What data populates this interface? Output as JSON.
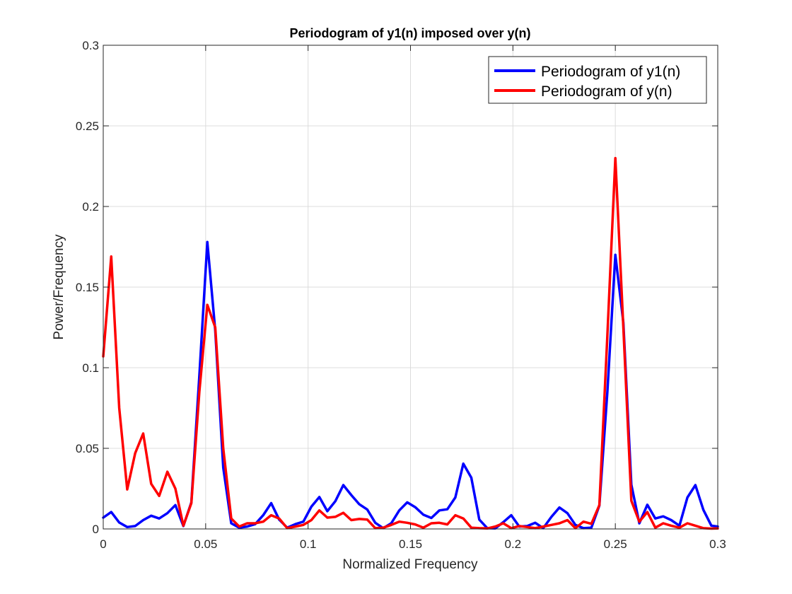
{
  "chart_data": {
    "type": "line",
    "title": "Periodogram of y1(n) imposed over y(n)",
    "xlabel": "Normalized Frequency",
    "ylabel": "Power/Frequency",
    "xlim": [
      0,
      0.3
    ],
    "ylim": [
      0,
      0.3
    ],
    "xticks": [
      "0",
      "0.05",
      "0.1",
      "0.15",
      "0.2",
      "0.25",
      "0.3"
    ],
    "yticks": [
      "0",
      "0.05",
      "0.1",
      "0.15",
      "0.2",
      "0.25",
      "0.3"
    ],
    "xtick_values": [
      0,
      0.05,
      0.1,
      0.15,
      0.2,
      0.25,
      0.3
    ],
    "ytick_values": [
      0,
      0.05,
      0.1,
      0.15,
      0.2,
      0.25,
      0.3
    ],
    "grid": true,
    "legend_position": "top-right",
    "x": [
      0,
      0.0039,
      0.0078,
      0.0117,
      0.0156,
      0.0195,
      0.0234,
      0.0273,
      0.0313,
      0.0352,
      0.0391,
      0.043,
      0.0469,
      0.0508,
      0.0547,
      0.0586,
      0.0625,
      0.0664,
      0.0703,
      0.0742,
      0.0781,
      0.082,
      0.0859,
      0.0898,
      0.0938,
      0.0977,
      0.1016,
      0.1055,
      0.1094,
      0.1133,
      0.1172,
      0.1211,
      0.125,
      0.1289,
      0.1328,
      0.1367,
      0.1406,
      0.1445,
      0.1484,
      0.1523,
      0.1563,
      0.1602,
      0.1641,
      0.168,
      0.1719,
      0.1758,
      0.1797,
      0.1836,
      0.1875,
      0.1914,
      0.1953,
      0.1992,
      0.2031,
      0.207,
      0.2109,
      0.2148,
      0.2188,
      0.2227,
      0.2266,
      0.2305,
      0.2344,
      0.2383,
      0.2422,
      0.2461,
      0.25,
      0.2539,
      0.2578,
      0.2617,
      0.2656,
      0.2695,
      0.2734,
      0.2773,
      0.2813,
      0.2852,
      0.2891,
      0.293,
      0.2969,
      0.3
    ],
    "series": [
      {
        "name": "Periodogram of y1(n)",
        "color": "#0000ff",
        "values": [
          0.007,
          0.0105,
          0.004,
          0.0012,
          0.0018,
          0.0055,
          0.0082,
          0.0065,
          0.0098,
          0.0148,
          0.0018,
          0.0165,
          0.095,
          0.178,
          0.123,
          0.038,
          0.0035,
          0.0008,
          0.0015,
          0.003,
          0.0085,
          0.016,
          0.0058,
          0.0008,
          0.003,
          0.0045,
          0.0138,
          0.0198,
          0.011,
          0.0172,
          0.0272,
          0.021,
          0.0153,
          0.012,
          0.0038,
          0.0005,
          0.0035,
          0.0115,
          0.0165,
          0.0135,
          0.0088,
          0.0068,
          0.0115,
          0.0122,
          0.0195,
          0.0405,
          0.0318,
          0.0058,
          0.0005,
          0.0003,
          0.0042,
          0.0085,
          0.0015,
          0.0018,
          0.0038,
          0.0005,
          0.0075,
          0.0133,
          0.0098,
          0.0025,
          0.0005,
          0.0008,
          0.0145,
          0.085,
          0.17,
          0.128,
          0.0275,
          0.0035,
          0.015,
          0.0065,
          0.0078,
          0.0055,
          0.002,
          0.0195,
          0.0272,
          0.0118,
          0.002,
          0.0015
        ]
      },
      {
        "name": "Periodogram of y(n)",
        "color": "#ff0000",
        "values": [
          0.107,
          0.169,
          0.075,
          0.0245,
          0.047,
          0.0592,
          0.028,
          0.0205,
          0.0355,
          0.025,
          0.002,
          0.016,
          0.085,
          0.139,
          0.125,
          0.05,
          0.0065,
          0.0015,
          0.0035,
          0.0035,
          0.0045,
          0.0085,
          0.0065,
          0.0005,
          0.0015,
          0.0025,
          0.0055,
          0.0115,
          0.007,
          0.0075,
          0.01,
          0.0055,
          0.0062,
          0.0058,
          0.0005,
          0.0008,
          0.0025,
          0.0045,
          0.0038,
          0.0028,
          0.0008,
          0.0035,
          0.0038,
          0.0028,
          0.0085,
          0.0065,
          0.0008,
          0.0005,
          0.0003,
          0.0015,
          0.0035,
          0.0005,
          0.0018,
          0.0012,
          0.0005,
          0.0015,
          0.0025,
          0.0035,
          0.0055,
          0.0005,
          0.0045,
          0.0032,
          0.0148,
          0.12,
          0.23,
          0.125,
          0.0175,
          0.0045,
          0.0105,
          0.0008,
          0.0035,
          0.002,
          0.0008,
          0.0035,
          0.002,
          0.0005,
          0.0002,
          0.0003
        ]
      }
    ]
  }
}
